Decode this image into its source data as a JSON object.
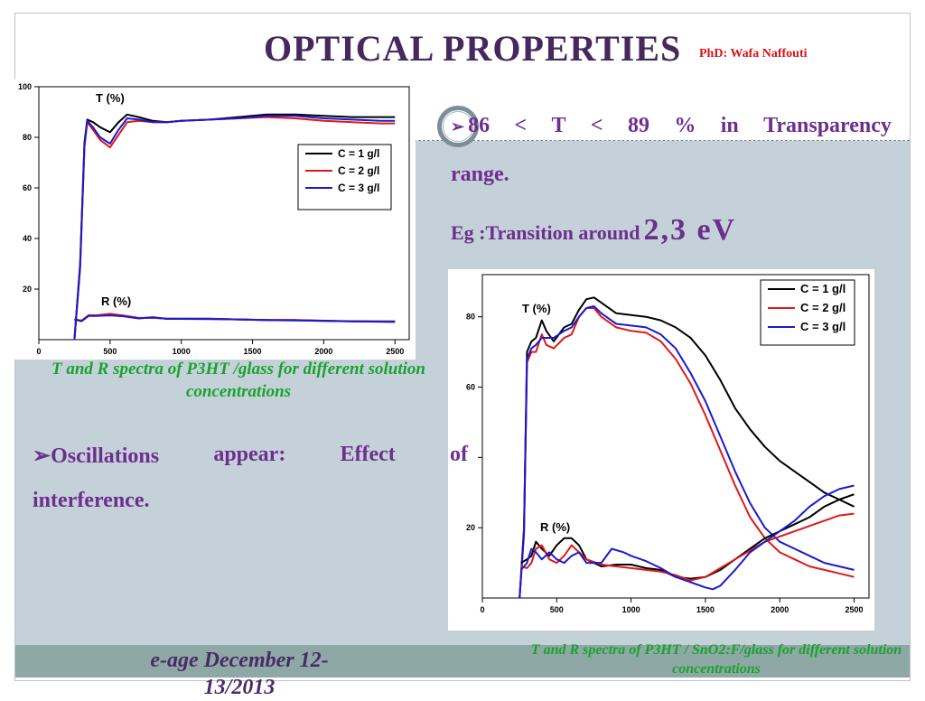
{
  "slide": {
    "title": "OPTICAL PROPERTIES",
    "author": "PhD: Wafa Naffouti",
    "bullet1_words": [
      "86",
      "<",
      "T",
      "<",
      "89",
      "%",
      "in",
      "Transparency"
    ],
    "bullet1_end": "range.",
    "eg_prefix": "Eg :Transition around",
    "eg_value": "2,3 eV",
    "bullet2_words": [
      "Oscillations",
      "appear:",
      "Effect",
      "of"
    ],
    "bullet2_end": "interference.",
    "caption1": "T and R spectra of P3HT /glass for different solution concentrations",
    "caption2": "T and R spectra of  P3HT / SnO2:F/glass for different  solution concentrations",
    "footer": "e-age December 12-13/2013",
    "colors": {
      "title": "#46285e",
      "bullet_text": "#6d2f8e",
      "caption": "#19a32d",
      "author": "#d4141b"
    }
  },
  "chart_data": [
    {
      "type": "line",
      "xlim": [
        0,
        2600
      ],
      "ylim": [
        0,
        100
      ],
      "x_ticks": [
        0,
        500,
        1000,
        1500,
        2000,
        2500
      ],
      "y_ticks": [
        20,
        40,
        60,
        80,
        100
      ],
      "annotations": [
        "T (%)",
        "R (%)"
      ],
      "legend_position": "right",
      "series": [
        {
          "name": "C = 1 g/l",
          "color": "#000000",
          "group": "T",
          "x": [
            250,
            290,
            320,
            340,
            380,
            430,
            500,
            560,
            620,
            700,
            800,
            900,
            1000,
            1200,
            1400,
            1600,
            1800,
            2000,
            2200,
            2400,
            2500
          ],
          "y": [
            0,
            30,
            78,
            87,
            86,
            84,
            82,
            86,
            89,
            88,
            86.5,
            86,
            86.5,
            87,
            88,
            89,
            89,
            88.5,
            88,
            88,
            88
          ]
        },
        {
          "name": "C = 2 g/l",
          "color": "#e01818",
          "group": "T",
          "x": [
            250,
            290,
            320,
            340,
            380,
            430,
            500,
            560,
            620,
            700,
            800,
            900,
            1000,
            1200,
            1400,
            1600,
            1800,
            2000,
            2200,
            2400,
            2500
          ],
          "y": [
            0,
            28,
            76,
            86,
            83,
            79,
            76,
            81,
            86,
            86.5,
            86,
            86,
            86.5,
            87,
            87.5,
            88,
            87.5,
            86.5,
            86,
            85.5,
            85.5
          ]
        },
        {
          "name": "C = 3 g/l",
          "color": "#1a1ad0",
          "group": "T",
          "x": [
            250,
            290,
            320,
            340,
            380,
            430,
            500,
            560,
            620,
            700,
            800,
            900,
            1000,
            1200,
            1400,
            1600,
            1800,
            2000,
            2200,
            2400,
            2500
          ],
          "y": [
            0,
            29,
            77,
            86.5,
            84,
            80,
            77.5,
            83,
            87.5,
            87,
            86,
            86,
            86.5,
            87,
            87.5,
            88.5,
            88.5,
            87.5,
            87,
            86.5,
            86.5
          ]
        },
        {
          "name": "",
          "color": "#000000",
          "group": "R",
          "x": [
            250,
            300,
            350,
            400,
            500,
            600,
            700,
            800,
            900,
            1000,
            1200,
            1400,
            1600,
            1800,
            2000,
            2200,
            2400,
            2500
          ],
          "y": [
            8,
            7.5,
            9.5,
            9.5,
            9.8,
            9.3,
            8.5,
            8.7,
            8.3,
            8.3,
            8.3,
            8,
            7.8,
            7.8,
            7.5,
            7.3,
            7.2,
            7.2
          ]
        },
        {
          "name": "",
          "color": "#e01818",
          "group": "R",
          "x": [
            250,
            300,
            350,
            400,
            500,
            600,
            700,
            800,
            900,
            1000,
            1200,
            1400,
            1600,
            1800,
            2000,
            2200,
            2400,
            2500
          ],
          "y": [
            8,
            7.5,
            9.7,
            9.6,
            10.2,
            9.5,
            8.6,
            8.6,
            8.3,
            8.2,
            8.2,
            8,
            7.8,
            7.7,
            7.4,
            7.2,
            7.1,
            7.1
          ]
        },
        {
          "name": "",
          "color": "#1a1ad0",
          "group": "R",
          "x": [
            250,
            300,
            350,
            400,
            500,
            600,
            700,
            800,
            900,
            1000,
            1200,
            1400,
            1600,
            1800,
            2000,
            2200,
            2400,
            2500
          ],
          "y": [
            8,
            7.3,
            9.4,
            9.4,
            9.6,
            9.2,
            8.4,
            8.9,
            8.2,
            8.2,
            8.1,
            8,
            7.7,
            7.6,
            7.4,
            7.2,
            7.1,
            7.0
          ]
        }
      ]
    },
    {
      "type": "line",
      "xlim": [
        0,
        2600
      ],
      "ylim": [
        0,
        92
      ],
      "x_ticks": [
        0,
        500,
        1000,
        1500,
        2000,
        2500
      ],
      "y_ticks": [
        20,
        40,
        60,
        80
      ],
      "y_tick_labels": [
        "20",
        "",
        "60",
        "80"
      ],
      "annotations": [
        "T (%)",
        "R (%)"
      ],
      "legend_position": "top-right",
      "series": [
        {
          "name": "C = 1 g/l",
          "color": "#000000",
          "group": "T",
          "x": [
            250,
            280,
            300,
            330,
            360,
            400,
            430,
            480,
            550,
            600,
            650,
            700,
            750,
            800,
            900,
            1000,
            1100,
            1200,
            1300,
            1400,
            1500,
            1600,
            1700,
            1800,
            1900,
            2000,
            2100,
            2200,
            2300,
            2400,
            2500
          ],
          "y": [
            0,
            20,
            70,
            73,
            74,
            79,
            76,
            73,
            77,
            78,
            82,
            85,
            85.5,
            84,
            81,
            80.5,
            80,
            79,
            77,
            74,
            69,
            62,
            54,
            48,
            43,
            39,
            36,
            33,
            30,
            28,
            26
          ]
        },
        {
          "name": "C = 2 g/l",
          "color": "#e01818",
          "group": "T",
          "x": [
            250,
            280,
            300,
            330,
            360,
            400,
            430,
            480,
            550,
            600,
            650,
            700,
            750,
            800,
            900,
            1000,
            1100,
            1200,
            1300,
            1400,
            1500,
            1600,
            1700,
            1800,
            1900,
            2000,
            2100,
            2200,
            2300,
            2400,
            2500
          ],
          "y": [
            0,
            18,
            67,
            70,
            70,
            75,
            72,
            71,
            74,
            75,
            80,
            82.5,
            82.5,
            80,
            77,
            76,
            75.5,
            73,
            68,
            61,
            52,
            42,
            32,
            23,
            17,
            13,
            11,
            9,
            8,
            7,
            6
          ]
        },
        {
          "name": "C = 3 g/l",
          "color": "#1a1ad0",
          "group": "T",
          "x": [
            250,
            280,
            300,
            330,
            360,
            400,
            430,
            480,
            550,
            600,
            650,
            700,
            750,
            800,
            900,
            1000,
            1100,
            1200,
            1300,
            1400,
            1500,
            1600,
            1700,
            1800,
            1900,
            2000,
            2100,
            2200,
            2300,
            2400,
            2500
          ],
          "y": [
            0,
            19,
            68,
            71,
            72,
            74,
            74,
            74,
            76,
            77,
            80,
            82.5,
            83,
            81,
            78,
            77.5,
            77,
            75,
            71,
            64,
            56,
            46,
            36,
            27,
            20,
            16,
            14,
            12,
            10,
            9,
            8
          ]
        },
        {
          "name": "",
          "color": "#000000",
          "group": "R",
          "x": [
            260,
            300,
            330,
            360,
            400,
            450,
            500,
            550,
            600,
            650,
            700,
            800,
            900,
            1000,
            1100,
            1200,
            1300,
            1400,
            1500,
            1600,
            1700,
            1800,
            1900,
            2000,
            2100,
            2200,
            2300,
            2400,
            2500
          ],
          "y": [
            10,
            11,
            12,
            16,
            14,
            12,
            15,
            17,
            17,
            15,
            11,
            9,
            9.5,
            9.5,
            8.5,
            8,
            6,
            5.5,
            6,
            8,
            11,
            14,
            17,
            19,
            21,
            23,
            26,
            28,
            29.5
          ]
        },
        {
          "name": "",
          "color": "#e01818",
          "group": "R",
          "x": [
            260,
            300,
            330,
            360,
            400,
            450,
            500,
            550,
            600,
            650,
            700,
            800,
            900,
            1000,
            1100,
            1200,
            1300,
            1400,
            1500,
            1600,
            1700,
            1800,
            1900,
            2000,
            2100,
            2200,
            2300,
            2400,
            2500
          ],
          "y": [
            9,
            8.5,
            10,
            14,
            15,
            11,
            10,
            12,
            15,
            13,
            11,
            9.5,
            9,
            8.5,
            8,
            7.5,
            6.5,
            5,
            6,
            8.5,
            11,
            13.5,
            16,
            17.5,
            19,
            20.5,
            22,
            23.5,
            24
          ]
        },
        {
          "name": "",
          "color": "#1a1ad0",
          "group": "R",
          "x": [
            260,
            300,
            330,
            360,
            400,
            450,
            500,
            550,
            600,
            650,
            700,
            800,
            870,
            950,
            1000,
            1100,
            1200,
            1300,
            1400,
            1500,
            1550,
            1600,
            1700,
            1800,
            1900,
            2000,
            2100,
            2200,
            2300,
            2400,
            2500
          ],
          "y": [
            8,
            10,
            14,
            13,
            11,
            13,
            11,
            10,
            12,
            13,
            10,
            10,
            14,
            13,
            12,
            10.5,
            8.5,
            6,
            4.5,
            3,
            2.5,
            3.5,
            8,
            13,
            16,
            19,
            22,
            26,
            29,
            31,
            32
          ]
        }
      ]
    }
  ]
}
